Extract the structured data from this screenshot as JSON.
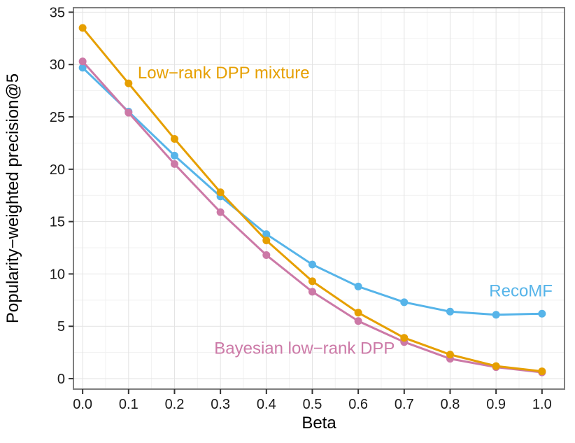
{
  "chart_data": {
    "type": "line",
    "title": "",
    "xlabel": "Beta",
    "ylabel": "Popularity−weighted precision@5",
    "x": [
      0.0,
      0.1,
      0.2,
      0.3,
      0.4,
      0.5,
      0.6,
      0.7,
      0.8,
      0.9,
      1.0
    ],
    "x_tick_labels": [
      "0.0",
      "0.1",
      "0.2",
      "0.3",
      "0.4",
      "0.5",
      "0.6",
      "0.7",
      "0.8",
      "0.9",
      "1.0"
    ],
    "y_ticks": [
      0,
      5,
      10,
      15,
      20,
      25,
      30,
      35
    ],
    "xlim": [
      -0.02,
      1.049
    ],
    "ylim": [
      -1.0,
      35.43
    ],
    "grid": {
      "major": true,
      "minor": true
    },
    "legend_position": "inline-annotations",
    "colors": {
      "grid_major": "#e3e3e3",
      "grid_minor": "#f1f1f1",
      "panel_border": "#7f7f7f",
      "tick_mark": "#333333",
      "tick_text": "#1a1a1a",
      "axis_title_text": "#000000"
    },
    "series": [
      {
        "name": "RecoMF",
        "color": "#56B4E9",
        "values": [
          29.7,
          25.5,
          21.3,
          17.4,
          13.8,
          10.9,
          8.8,
          7.3,
          6.4,
          6.1,
          6.2
        ]
      },
      {
        "name": "Bayesian low−rank DPP",
        "color": "#CC79A7",
        "values": [
          30.3,
          25.4,
          20.5,
          15.9,
          11.8,
          8.3,
          5.5,
          3.5,
          1.9,
          1.1,
          0.6
        ]
      },
      {
        "name": "Low−rank DPP mixture",
        "color": "#E69F00",
        "values": [
          33.5,
          28.2,
          22.9,
          17.8,
          13.2,
          9.3,
          6.3,
          3.9,
          2.3,
          1.2,
          0.7
        ]
      }
    ],
    "annotations": [
      {
        "text": "Low−rank DPP mixture",
        "color": "#E69F00",
        "x": 0.307,
        "y": 29.2
      },
      {
        "text": "RecoMF",
        "color": "#56B4E9",
        "x": 0.954,
        "y": 8.4
      },
      {
        "text": "Bayesian low−rank DPP",
        "color": "#CC79A7",
        "x": 0.483,
        "y": 2.9
      }
    ]
  }
}
